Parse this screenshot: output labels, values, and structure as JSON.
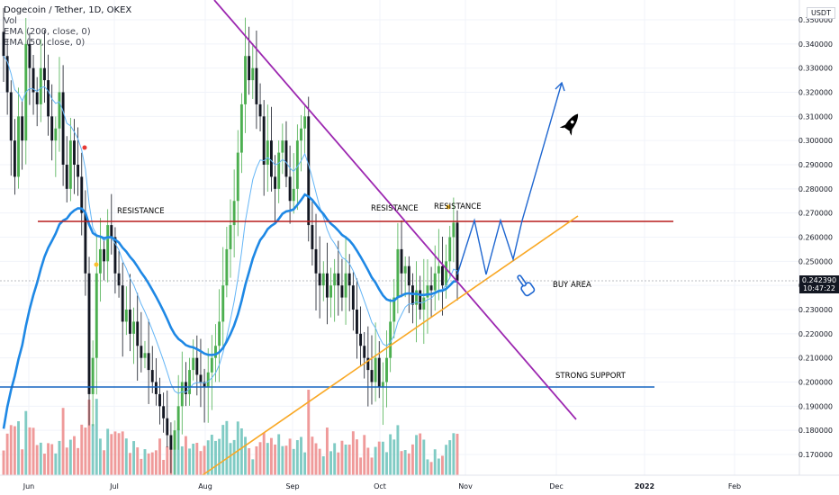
{
  "header": {
    "title": "Dogecoin / Tether, 1D, OKEX",
    "indicators": [
      "Vol",
      "EMA (200, close, 0)",
      "EMA (50, close, 0)"
    ]
  },
  "axis": {
    "unit": "USDT",
    "price_ticks": [
      "0.350000",
      "0.340000",
      "0.330000",
      "0.320000",
      "0.310000",
      "0.300000",
      "0.290000",
      "0.280000",
      "0.270000",
      "0.260000",
      "0.250000",
      "0.240000",
      "0.230000",
      "0.220000",
      "0.210000",
      "0.200000",
      "0.190000",
      "0.180000",
      "0.170000"
    ],
    "date_ticks": [
      "Jun",
      "Jul",
      "Aug",
      "Sep",
      "Oct",
      "Nov",
      "Dec",
      "2022",
      "Feb"
    ]
  },
  "current_price": {
    "value": "0.242390",
    "countdown": "10:47:22"
  },
  "annotations": {
    "resistance_1": "RESISTANCE",
    "resistance_2": "RESISTANCE",
    "resistance_3": "RESISTANCE",
    "buy_area": "BUY AREA",
    "strong_support": "STRONG SUPPORT"
  },
  "colors": {
    "up": "#26a69a",
    "candle_up": "#4caf50",
    "candle_down": "#131722",
    "vol_up": "#80cbc4",
    "vol_down": "#ef9a9a",
    "ema200": "#1e88e5",
    "ema50": "#64b5f6",
    "resistance": "#b71c1c",
    "support": "#1565c0",
    "downtrend": "#9c27b0",
    "uptrend": "#f9a825",
    "projection": "#1e66d0"
  },
  "chart_data": {
    "type": "candlestick",
    "symbol": "DOGE/USDT",
    "interval": "1D",
    "exchange": "OKEX",
    "ylim": [
      0.165,
      0.352
    ],
    "resistance_level": 0.2665,
    "support_level": 0.1975,
    "last_price": 0.24239,
    "closes": [
      0.335,
      0.32,
      0.3,
      0.285,
      0.31,
      0.3,
      0.34,
      0.33,
      0.32,
      0.315,
      0.33,
      0.325,
      0.31,
      0.3,
      0.305,
      0.32,
      0.29,
      0.28,
      0.3,
      0.29,
      0.285,
      0.27,
      0.245,
      0.195,
      0.21,
      0.245,
      0.255,
      0.25,
      0.265,
      0.26,
      0.245,
      0.24,
      0.225,
      0.23,
      0.22,
      0.225,
      0.215,
      0.21,
      0.212,
      0.205,
      0.2,
      0.195,
      0.19,
      0.185,
      0.178,
      0.172,
      0.18,
      0.19,
      0.2,
      0.195,
      0.205,
      0.21,
      0.203,
      0.2,
      0.198,
      0.204,
      0.21,
      0.215,
      0.225,
      0.24,
      0.255,
      0.265,
      0.275,
      0.295,
      0.315,
      0.335,
      0.325,
      0.33,
      0.315,
      0.31,
      0.29,
      0.3,
      0.285,
      0.28,
      0.295,
      0.3,
      0.285,
      0.275,
      0.28,
      0.3,
      0.305,
      0.31,
      0.265,
      0.255,
      0.245,
      0.24,
      0.245,
      0.235,
      0.24,
      0.245,
      0.24,
      0.235,
      0.245,
      0.24,
      0.23,
      0.22,
      0.215,
      0.21,
      0.205,
      0.2,
      0.21,
      0.198,
      0.2,
      0.21,
      0.225,
      0.235,
      0.255,
      0.245,
      0.248,
      0.24,
      0.232,
      0.238,
      0.23,
      0.235,
      0.24,
      0.238,
      0.245,
      0.248,
      0.24,
      0.25,
      0.26,
      0.266,
      0.242
    ]
  }
}
